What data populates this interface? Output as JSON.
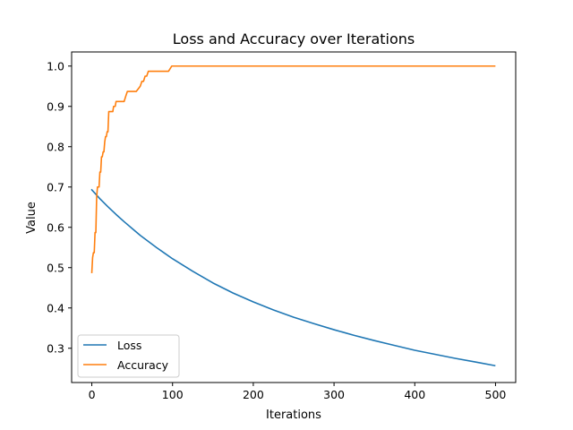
{
  "chart_data": {
    "type": "line",
    "title": "Loss and Accuracy over Iterations",
    "xlabel": "Iterations",
    "ylabel": "Value",
    "xlim": [
      -25,
      525
    ],
    "ylim": [
      0.215,
      1.035
    ],
    "xticks": [
      0,
      100,
      200,
      300,
      400,
      500
    ],
    "yticks": [
      0.3,
      0.4,
      0.5,
      0.6,
      0.7,
      0.8,
      0.9,
      1.0
    ],
    "ytick_labels": [
      "0.3",
      "0.4",
      "0.5",
      "0.6",
      "0.7",
      "0.8",
      "0.9",
      "1.0"
    ],
    "grid": false,
    "legend_position": "lower-left",
    "series": [
      {
        "name": "Loss",
        "color": "#1f77b4",
        "x": [
          0,
          10,
          20,
          30,
          40,
          50,
          60,
          70,
          80,
          90,
          100,
          125,
          150,
          175,
          200,
          225,
          250,
          275,
          300,
          325,
          350,
          375,
          400,
          425,
          450,
          475,
          499
        ],
        "y": [
          0.693,
          0.671,
          0.651,
          0.632,
          0.614,
          0.597,
          0.58,
          0.565,
          0.55,
          0.536,
          0.522,
          0.491,
          0.462,
          0.437,
          0.415,
          0.395,
          0.377,
          0.361,
          0.346,
          0.332,
          0.319,
          0.307,
          0.295,
          0.285,
          0.275,
          0.266,
          0.257
        ]
      },
      {
        "name": "Accuracy",
        "color": "#ff7f0e",
        "x": [
          0,
          1,
          2,
          3,
          4,
          5,
          6,
          7,
          8,
          9,
          10,
          11,
          12,
          13,
          14,
          15,
          16,
          17,
          18,
          19,
          20,
          21,
          22,
          23,
          24,
          25,
          26,
          27,
          28,
          29,
          30,
          31,
          32,
          33,
          34,
          36,
          38,
          40,
          42,
          44,
          46,
          48,
          50,
          55,
          60,
          62,
          64,
          66,
          68,
          70,
          72,
          74,
          76,
          80,
          85,
          90,
          95,
          99,
          100,
          499
        ],
        "y": [
          0.488,
          0.525,
          0.537,
          0.537,
          0.587,
          0.587,
          0.675,
          0.7,
          0.7,
          0.7,
          0.737,
          0.737,
          0.775,
          0.775,
          0.787,
          0.787,
          0.812,
          0.825,
          0.825,
          0.837,
          0.837,
          0.887,
          0.887,
          0.887,
          0.887,
          0.887,
          0.887,
          0.9,
          0.9,
          0.9,
          0.912,
          0.912,
          0.912,
          0.912,
          0.912,
          0.912,
          0.912,
          0.912,
          0.925,
          0.937,
          0.937,
          0.937,
          0.937,
          0.937,
          0.95,
          0.962,
          0.962,
          0.975,
          0.975,
          0.987,
          0.987,
          0.987,
          0.987,
          0.987,
          0.987,
          0.987,
          0.987,
          1.0,
          1.0,
          1.0
        ]
      }
    ]
  }
}
